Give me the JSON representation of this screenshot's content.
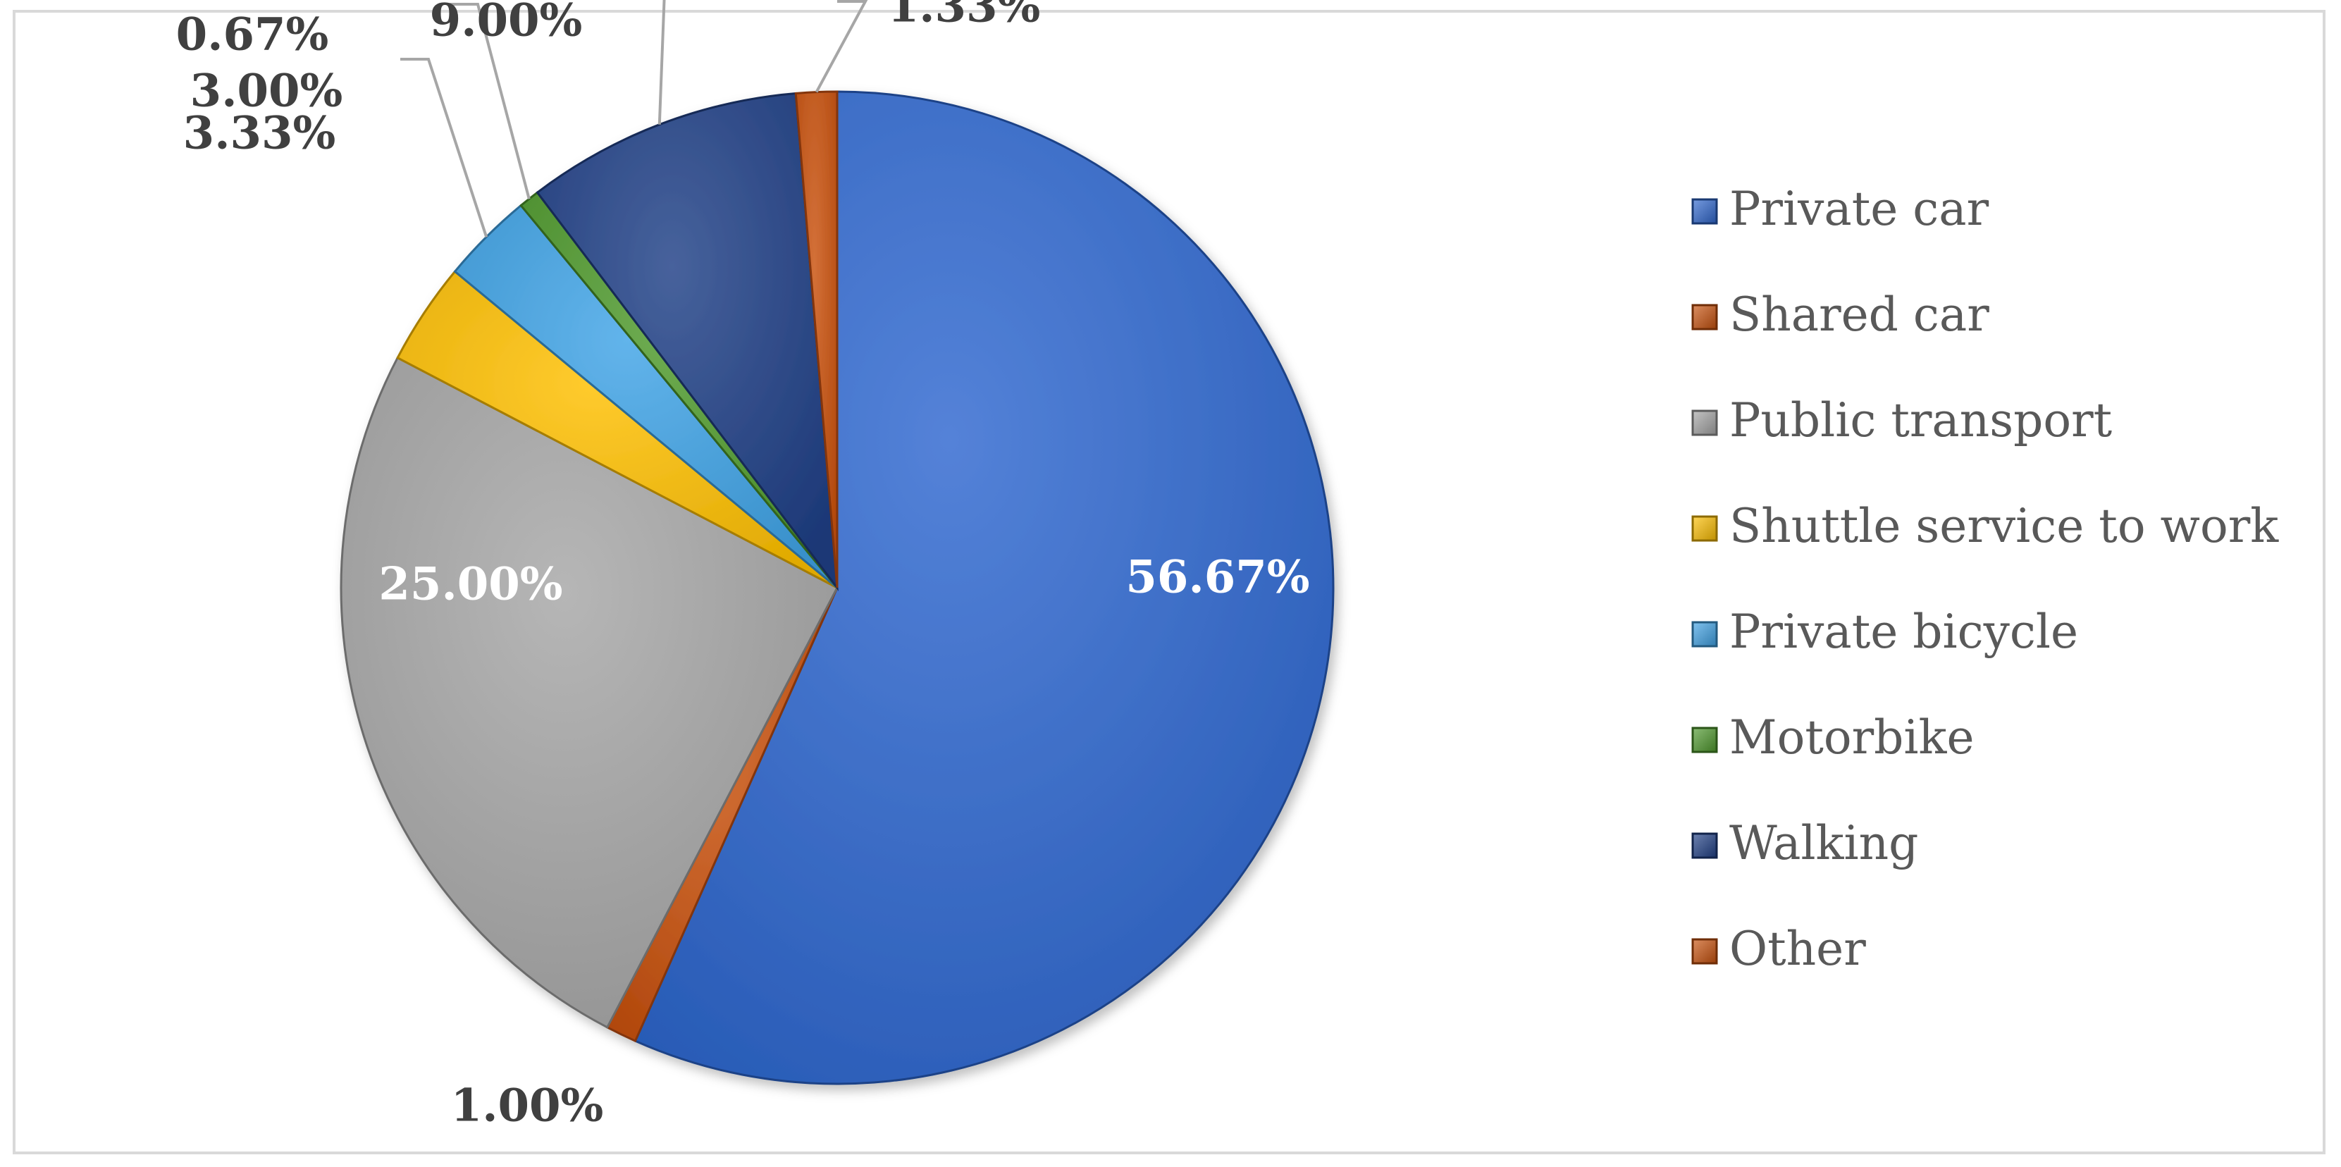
{
  "chart_data": {
    "type": "pie",
    "categories": [
      "Private car",
      "Shared car",
      "Public transport",
      "Shuttle service to work",
      "Private bicycle",
      "Motorbike",
      "Walking",
      "Other"
    ],
    "values": [
      56.67,
      1.0,
      25.0,
      3.33,
      3.0,
      0.67,
      9.0,
      1.33
    ],
    "data_labels": [
      "56.67%",
      "1.00%",
      "25.00%",
      "3.33%",
      "3.00%",
      "0.67%",
      "9.00%",
      "1.33%"
    ],
    "colors": [
      "#2e67cf",
      "#c9510c",
      "#a6a6a6",
      "#ffc000",
      "#3fa3e6",
      "#4e9a2c",
      "#1f3f86",
      "#c9510c"
    ],
    "label_colors": [
      "#ffffff",
      "#404040",
      "#ffffff",
      "#404040",
      "#404040",
      "#404040",
      "#404040",
      "#404040"
    ],
    "legend_position": "right",
    "start_angle": "12 o'clock",
    "direction": "clockwise"
  }
}
